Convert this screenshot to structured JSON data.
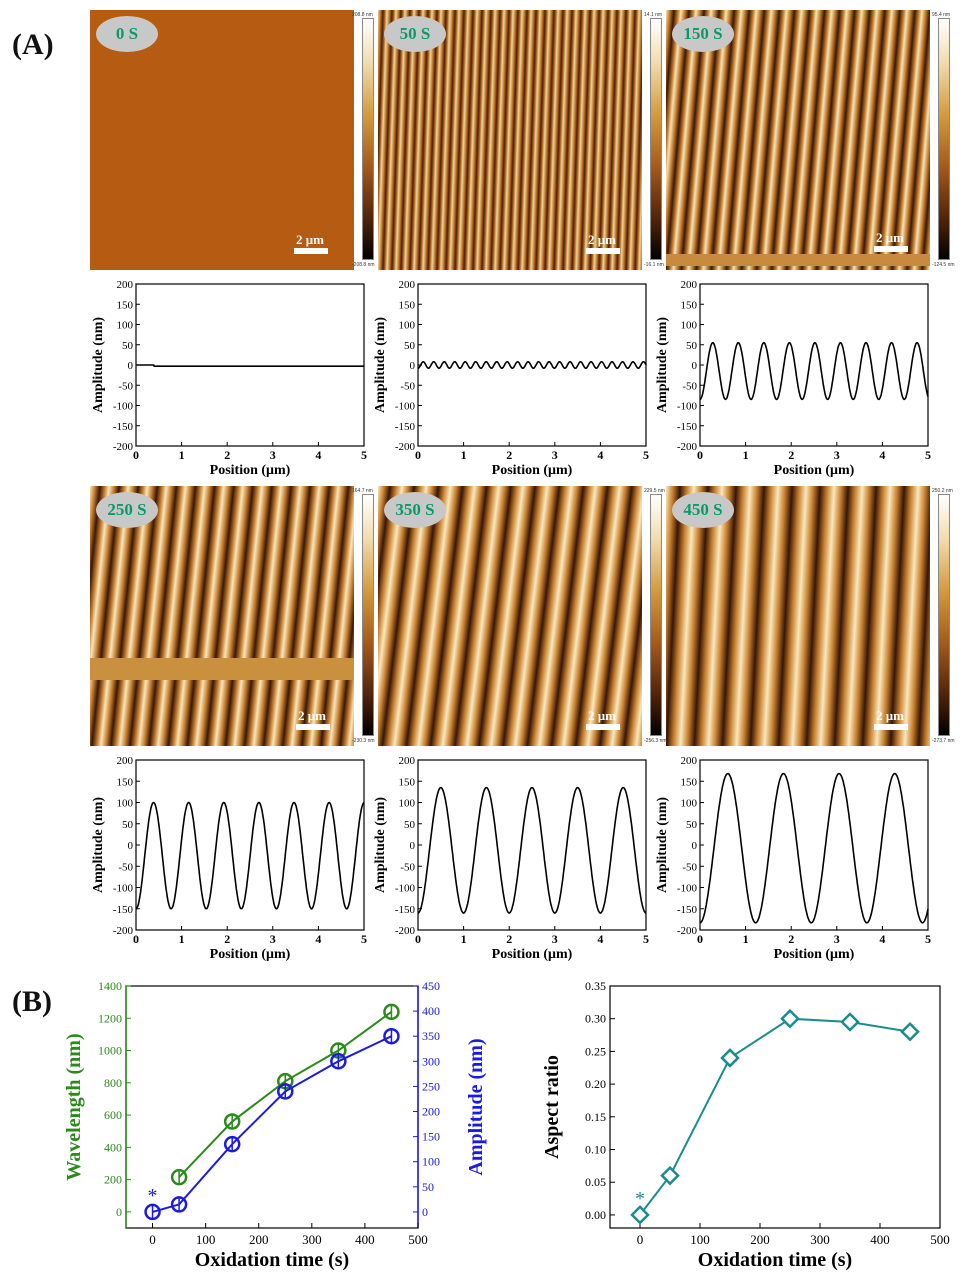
{
  "panel_a_label": "(A)",
  "panel_b_label": "(B)",
  "scale_bar": "2 μm",
  "afm_panels": [
    {
      "time": "0 S",
      "cb_max": "208.8 nm",
      "cb_min": "-208.8 nm"
    },
    {
      "time": "50 S",
      "cb_max": "14.1 nm",
      "cb_min": "-16.1 nm"
    },
    {
      "time": "150 S",
      "cb_max": "95.4 nm",
      "cb_min": "-124.5 nm"
    },
    {
      "time": "250 S",
      "cb_max": "164.7 nm",
      "cb_min": "-230.3 nm"
    },
    {
      "time": "350 S",
      "cb_max": "229.5 nm",
      "cb_min": "-256.3 nm"
    },
    {
      "time": "450 S",
      "cb_max": "250.2 nm",
      "cb_min": "-273.7 nm"
    }
  ],
  "chart_data": [
    {
      "type": "line",
      "panel": "0 S",
      "xlabel": "Position (μm)",
      "ylabel": "Amplitude (nm)",
      "xlim": [
        0,
        5
      ],
      "ylim": [
        -200,
        200
      ],
      "x_ticks": [
        0,
        1,
        2,
        3,
        4,
        5
      ],
      "y_ticks": [
        200,
        150,
        100,
        50,
        0,
        -50,
        -100,
        -150,
        -200
      ],
      "profile": {
        "amp_max": 0,
        "amp_min": -3,
        "period": 0
      }
    },
    {
      "type": "line",
      "panel": "50 S",
      "xlabel": "Position (μm)",
      "ylabel": "Amplitude (nm)",
      "xlim": [
        0,
        5
      ],
      "ylim": [
        -200,
        200
      ],
      "x_ticks": [
        0,
        1,
        2,
        3,
        4,
        5
      ],
      "y_ticks": [
        200,
        150,
        100,
        50,
        0,
        -50,
        -100,
        -150,
        -200
      ],
      "profile": {
        "amp_max": 8,
        "amp_min": -8,
        "period": 0.23
      }
    },
    {
      "type": "line",
      "panel": "150 S",
      "xlabel": "Position (μm)",
      "ylabel": "Amplitude (nm)",
      "xlim": [
        0,
        5
      ],
      "ylim": [
        -200,
        200
      ],
      "x_ticks": [
        0,
        1,
        2,
        3,
        4,
        5
      ],
      "y_ticks": [
        200,
        150,
        100,
        50,
        0,
        -50,
        -100,
        -150,
        -200
      ],
      "profile": {
        "amp_max": 55,
        "amp_min": -85,
        "period": 0.56
      }
    },
    {
      "type": "line",
      "panel": "250 S",
      "xlabel": "Position (μm)",
      "ylabel": "Amplitude (nm)",
      "xlim": [
        0,
        5
      ],
      "ylim": [
        -200,
        200
      ],
      "x_ticks": [
        0,
        1,
        2,
        3,
        4,
        5
      ],
      "y_ticks": [
        200,
        150,
        100,
        50,
        0,
        -50,
        -100,
        -150,
        -200
      ],
      "profile": {
        "amp_max": 100,
        "amp_min": -150,
        "period": 0.77
      }
    },
    {
      "type": "line",
      "panel": "350 S",
      "xlabel": "Position (μm)",
      "ylabel": "Amplitude (nm)",
      "xlim": [
        0,
        5
      ],
      "ylim": [
        -200,
        200
      ],
      "x_ticks": [
        0,
        1,
        2,
        3,
        4,
        5
      ],
      "y_ticks": [
        200,
        150,
        100,
        50,
        0,
        -50,
        -100,
        -150,
        -200
      ],
      "profile": {
        "amp_max": 135,
        "amp_min": -160,
        "period": 1.0
      }
    },
    {
      "type": "line",
      "panel": "450 S",
      "xlabel": "Position (μm)",
      "ylabel": "Amplitude (nm)",
      "xlim": [
        0,
        5
      ],
      "ylim": [
        -200,
        200
      ],
      "x_ticks": [
        0,
        1,
        2,
        3,
        4,
        5
      ],
      "y_ticks": [
        200,
        150,
        100,
        50,
        0,
        -50,
        -100,
        -150,
        -200
      ],
      "profile": {
        "amp_max": 168,
        "amp_min": -183,
        "period": 1.22
      }
    },
    {
      "type": "line",
      "panel": "B-left",
      "xlabel": "Oxidation time (s)",
      "ylabel_left": "Wavelength (nm)",
      "ylabel_right": "Amplitude (nm)",
      "xlim": [
        -50,
        500
      ],
      "x_ticks": [
        0,
        100,
        200,
        300,
        400,
        500
      ],
      "ylim_left": [
        -100,
        1400
      ],
      "y_ticks_left": [
        0,
        200,
        400,
        600,
        800,
        1000,
        1200,
        1400
      ],
      "ylim_right": [
        -32,
        450
      ],
      "y_ticks_right": [
        0,
        50,
        100,
        150,
        200,
        250,
        300,
        350,
        400,
        450
      ],
      "series": [
        {
          "axis": "left",
          "color": "#2a8a1a",
          "x": [
            50,
            150,
            250,
            350,
            450
          ],
          "y": [
            215,
            560,
            810,
            1000,
            1240
          ]
        },
        {
          "axis": "right",
          "color": "#1a1ae0",
          "x": [
            0,
            50,
            150,
            250,
            350,
            450
          ],
          "y": [
            0,
            15,
            135,
            240,
            300,
            350
          ]
        }
      ],
      "annotation": "*"
    },
    {
      "type": "line",
      "panel": "B-right",
      "xlabel": "Oxidation time (s)",
      "ylabel": "Aspect ratio",
      "xlim": [
        -50,
        500
      ],
      "x_ticks": [
        0,
        100,
        200,
        300,
        400,
        500
      ],
      "ylim": [
        -0.02,
        0.35
      ],
      "y_ticks": [
        0.0,
        0.05,
        0.1,
        0.15,
        0.2,
        0.25,
        0.3,
        0.35
      ],
      "series": [
        {
          "color": "#1a8c8c",
          "x": [
            0,
            50,
            150,
            250,
            350,
            450
          ],
          "y": [
            0.0,
            0.06,
            0.24,
            0.3,
            0.295,
            0.28
          ]
        }
      ],
      "annotation": "*"
    }
  ]
}
